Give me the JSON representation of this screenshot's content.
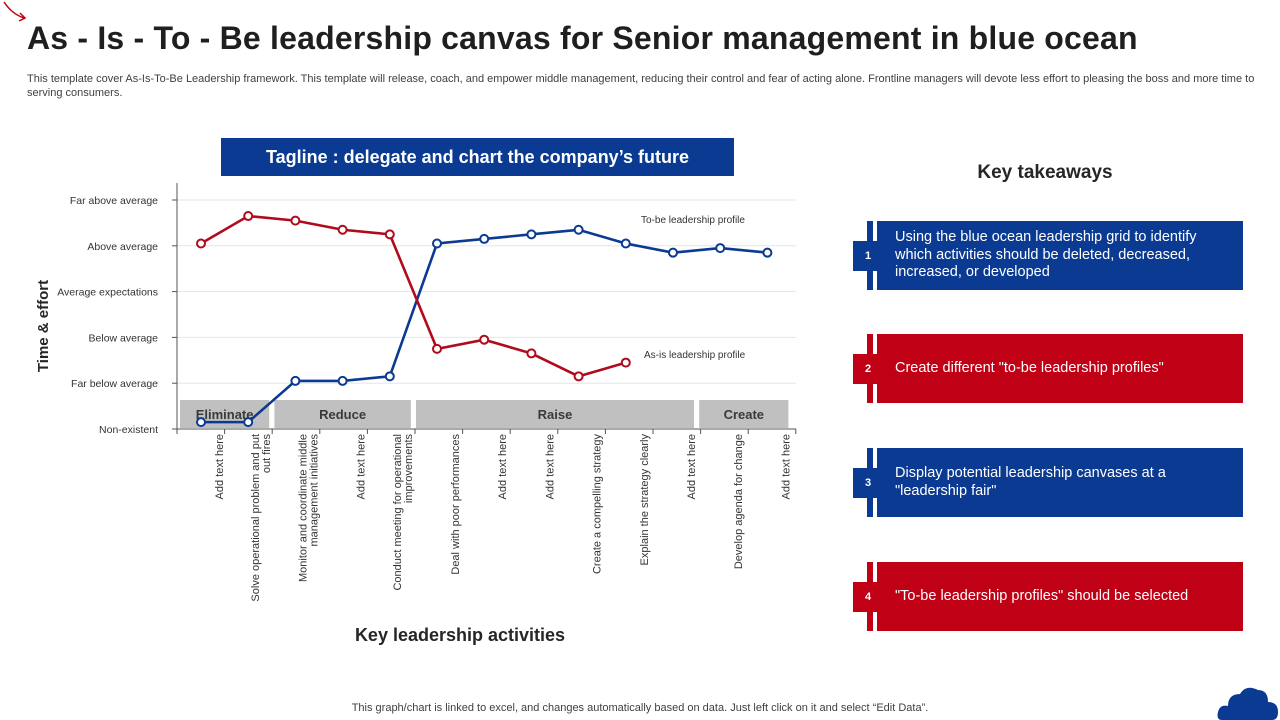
{
  "header": {
    "title": "As - Is - To - Be leadership canvas for Senior management in blue ocean",
    "subtitle": "This template cover As-Is-To-Be Leadership framework. This template will release, coach, and empower middle management, reducing their control and fear of acting alone. Frontline managers will devote less effort to pleasing the boss and more time to serving consumers."
  },
  "tagline": "Tagline : delegate and chart the company’s future",
  "chart_data": {
    "type": "line",
    "xlabel": "Key leadership activities",
    "ylabel": "Time & effort",
    "y_levels": [
      "Non-existent",
      "Far below average",
      "Below average",
      "Average expectations",
      "Above average",
      "Far above average"
    ],
    "ylim": [
      0,
      5
    ],
    "categories": [
      "Add text here",
      "Solve operational problem and put out fires",
      "Monitor and coordinate middle management initiatives",
      "Add text here",
      "Conduct meeting for operational improvements",
      "Deal with poor performances",
      "Add text here",
      "Add text here",
      "Create a compelling strategy",
      "Explain the strategy clearly",
      "Add text here",
      "Develop agenda for change",
      "Add text here"
    ],
    "category_groups": [
      {
        "label": "Eliminate",
        "from": 0,
        "to": 1
      },
      {
        "label": "Reduce",
        "from": 2,
        "to": 4
      },
      {
        "label": "Raise",
        "from": 5,
        "to": 10
      },
      {
        "label": "Create",
        "from": 11,
        "to": 12
      }
    ],
    "series": [
      {
        "name": "To-be leadership profile",
        "color": "#0b3a92",
        "values": [
          0.15,
          0.15,
          1.05,
          1.05,
          1.15,
          4.05,
          4.15,
          4.25,
          4.35,
          4.05,
          3.85,
          3.95,
          3.85
        ]
      },
      {
        "name": "As-is leadership profile",
        "color": "#b00a1c",
        "values": [
          4.05,
          4.65,
          4.55,
          4.35,
          4.25,
          1.75,
          1.95,
          1.65,
          1.15,
          1.45,
          null,
          null,
          null
        ]
      }
    ],
    "series_labels": [
      "To-be leadership profile",
      "As-is leadership profile"
    ]
  },
  "takeaways": {
    "title": "Key takeaways",
    "items": [
      {
        "num": "1",
        "text": "Using the blue ocean leadership grid to identify which activities should be deleted, decreased, increased, or developed"
      },
      {
        "num": "2",
        "text": "Create different \"to-be leadership profiles\""
      },
      {
        "num": "3",
        "text": "Display potential leadership canvases at a \"leadership fair\""
      },
      {
        "num": "4",
        "text": "\"To-be leadership profiles\" should be selected"
      }
    ]
  },
  "footnote": "This graph/chart is linked to excel,  and changes automatically based on data. Just left click on it and select “Edit Data”.",
  "colors": {
    "blue": "#0b3a92",
    "red": "#c00015",
    "band": "#c0c0c0"
  }
}
